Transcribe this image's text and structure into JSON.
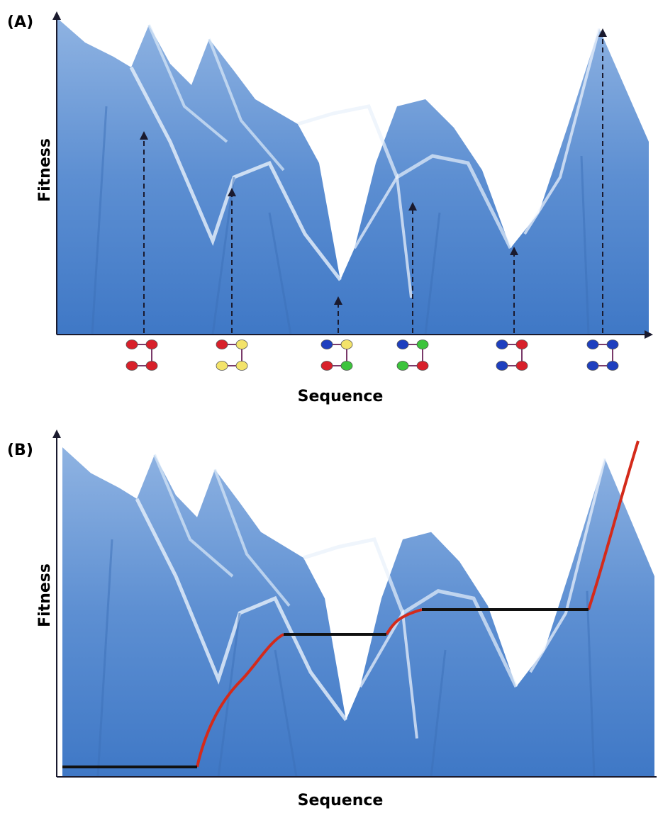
{
  "panels": [
    {
      "label": "(A)",
      "y_axis_label": "Fitness",
      "x_axis_label": "Sequence"
    },
    {
      "label": "(B)",
      "y_axis_label": "Fitness",
      "x_axis_label": "Sequence"
    }
  ]
}
